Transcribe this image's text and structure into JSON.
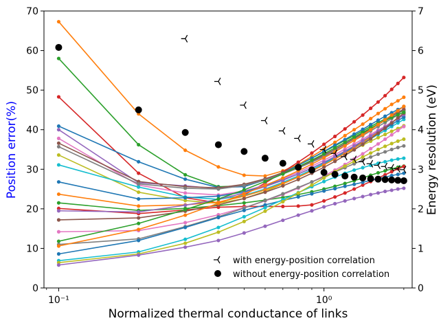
{
  "chart_data": {
    "type": "line",
    "title": "",
    "xlabel": "Normalized thermal conductance of links",
    "ylabel_left": "Position error(%)",
    "ylabel_right": "Energy resolution (eV)",
    "x_scale": "log",
    "xlim": [
      0.088,
      2.15
    ],
    "ylim_left": [
      0,
      70
    ],
    "ylim_right": [
      0,
      7
    ],
    "x_major_ticks": [
      {
        "value": 0.1,
        "label": "10⁻¹"
      },
      {
        "value": 1,
        "label": "10⁰"
      }
    ],
    "y_left_ticks": [
      "0",
      "10",
      "20",
      "30",
      "40",
      "50",
      "60",
      "70"
    ],
    "y_right_ticks": [
      "0",
      "1",
      "2",
      "3",
      "4",
      "5",
      "6",
      "7"
    ],
    "left_axis_color": "#0000ff",
    "right_axis_color": "#000000",
    "grid": false,
    "legend_position": "bottom-right",
    "legend": [
      {
        "marker": "tri-left",
        "label": "with energy-position correlation"
      },
      {
        "marker": "circle",
        "label": "without energy-position correlation"
      }
    ],
    "x": [
      0.1,
      0.2,
      0.3,
      0.4,
      0.5,
      0.6,
      0.7,
      0.8,
      0.9,
      1.0,
      1.1,
      1.2,
      1.3,
      1.4,
      1.5,
      1.6,
      1.7,
      1.8,
      1.9,
      2.0
    ],
    "series": [
      {
        "color": "#ff7f0e",
        "values": [
          67.3,
          44.0,
          34.8,
          30.6,
          28.5,
          28.3,
          29.6,
          31.2,
          33.2,
          35.1,
          36.8,
          38.5,
          40.0,
          41.4,
          42.8,
          44.1,
          45.3,
          46.4,
          47.3,
          48.2
        ]
      },
      {
        "color": "#2ca02c",
        "values": [
          58.0,
          36.2,
          28.6,
          25.6,
          25.8,
          27.4,
          29.2,
          31.0,
          32.8,
          34.4,
          35.9,
          37.3,
          38.5,
          39.7,
          40.8,
          41.8,
          42.7,
          43.5,
          44.2,
          44.9
        ]
      },
      {
        "color": "#d62728",
        "values": [
          48.3,
          29.0,
          22.8,
          21.5,
          23.5,
          26.5,
          29.3,
          31.8,
          34.1,
          36.3,
          38.3,
          40.2,
          42.0,
          43.7,
          45.4,
          47.0,
          48.6,
          50.2,
          51.7,
          53.2
        ]
      },
      {
        "color": "#1f77b4",
        "values": [
          40.9,
          31.9,
          27.5,
          25.4,
          25.6,
          27.3,
          29.1,
          31.0,
          32.8,
          34.5,
          36.1,
          37.5,
          38.9,
          40.1,
          41.3,
          42.4,
          43.4,
          44.3,
          45.1,
          45.8
        ]
      },
      {
        "color": "#9467bd",
        "values": [
          40.0,
          26.6,
          25.8,
          25.1,
          26.0,
          27.5,
          29.0,
          30.5,
          32.0,
          33.5,
          35.0,
          36.4,
          37.8,
          39.1,
          40.3,
          41.4,
          42.5,
          43.5,
          44.4,
          45.2
        ]
      },
      {
        "color": "#e377c2",
        "values": [
          37.8,
          26.0,
          24.0,
          23.5,
          24.5,
          26.0,
          27.6,
          29.2,
          30.8,
          32.3,
          33.7,
          35.1,
          36.4,
          37.6,
          38.8,
          39.9,
          40.9,
          41.9,
          42.8,
          43.7
        ]
      },
      {
        "color": "#8c564b",
        "values": [
          36.6,
          26.9,
          25.6,
          25.3,
          26.2,
          27.6,
          29.1,
          30.6,
          32.1,
          33.6,
          35.0,
          36.4,
          37.7,
          39.0,
          40.2,
          41.3,
          42.4,
          43.4,
          44.3,
          45.1
        ]
      },
      {
        "color": "#7f7f7f",
        "values": [
          35.7,
          26.3,
          25.2,
          25.0,
          25.9,
          27.3,
          28.8,
          30.3,
          31.8,
          33.2,
          34.6,
          36.0,
          37.3,
          38.5,
          39.7,
          40.8,
          41.8,
          42.8,
          43.7,
          44.5
        ]
      },
      {
        "color": "#bcbd22",
        "values": [
          33.6,
          24.2,
          22.1,
          21.4,
          22.6,
          24.4,
          26.3,
          28.1,
          29.8,
          31.4,
          32.8,
          34.0,
          35.1,
          36.1,
          37.1,
          38.0,
          38.8,
          39.6,
          40.3,
          41.0
        ]
      },
      {
        "color": "#17becf",
        "values": [
          31.1,
          25.5,
          23.0,
          22.4,
          23.4,
          25.0,
          26.7,
          28.3,
          29.9,
          31.4,
          32.8,
          34.1,
          35.4,
          36.6,
          37.7,
          38.8,
          39.8,
          40.8,
          41.7,
          42.6
        ]
      },
      {
        "color": "#1f77b4",
        "values": [
          26.8,
          22.5,
          22.8,
          23.2,
          24.3,
          25.8,
          27.3,
          28.8,
          30.3,
          31.7,
          33.1,
          34.4,
          35.7,
          36.9,
          38.1,
          39.2,
          40.3,
          41.3,
          42.3,
          43.2
        ]
      },
      {
        "color": "#ff7f0e",
        "values": [
          23.7,
          20.7,
          21.0,
          21.7,
          23.2,
          24.8,
          26.4,
          28.0,
          29.6,
          31.1,
          32.6,
          34.0,
          35.4,
          36.8,
          38.1,
          39.4,
          40.6,
          41.8,
          43.0,
          44.1
        ]
      },
      {
        "color": "#2ca02c",
        "values": [
          21.5,
          19.6,
          20.1,
          20.8,
          21.5,
          22.2,
          22.9,
          23.6,
          24.3,
          25.0,
          25.7,
          26.4,
          27.1,
          27.8,
          28.5,
          29.1,
          29.6,
          30.1,
          30.5,
          30.8
        ]
      },
      {
        "color": "#d62728",
        "values": [
          20.1,
          18.8,
          19.7,
          20.4,
          20.6,
          20.6,
          20.6,
          20.7,
          21.0,
          22.0,
          23.0,
          24.0,
          25.0,
          26.0,
          26.9,
          27.8,
          28.6,
          29.4,
          30.1,
          30.7
        ]
      },
      {
        "color": "#9467bd",
        "values": [
          19.5,
          19.2,
          20.9,
          22.4,
          24.0,
          25.6,
          27.2,
          28.8,
          30.3,
          31.8,
          33.2,
          34.6,
          35.9,
          37.2,
          38.4,
          39.6,
          40.7,
          41.8,
          42.8,
          43.8
        ]
      },
      {
        "color": "#8c564b",
        "values": [
          17.2,
          17.7,
          19.4,
          21.0,
          22.6,
          24.2,
          25.8,
          27.4,
          29.0,
          30.5,
          32.0,
          33.5,
          34.9,
          36.3,
          37.7,
          39.1,
          40.4,
          41.7,
          43.0,
          44.2
        ]
      },
      {
        "color": "#e377c2",
        "values": [
          14.2,
          14.5,
          16.5,
          18.5,
          20.3,
          22.0,
          23.6,
          25.2,
          26.8,
          28.3,
          29.8,
          31.2,
          32.6,
          33.9,
          35.2,
          36.4,
          37.6,
          38.7,
          39.8,
          40.8
        ]
      },
      {
        "color": "#2ca02c",
        "values": [
          11.8,
          16.3,
          19.8,
          22.5,
          24.8,
          26.9,
          28.8,
          30.6,
          32.3,
          33.9,
          35.4,
          36.8,
          38.1,
          39.3,
          40.4,
          41.4,
          42.3,
          43.1,
          43.8,
          44.4
        ]
      },
      {
        "color": "#7f7f7f",
        "values": [
          11.0,
          12.4,
          15.5,
          18.0,
          20.2,
          22.1,
          23.8,
          25.4,
          26.8,
          28.1,
          29.3,
          30.4,
          31.4,
          32.3,
          33.1,
          33.8,
          34.4,
          35.0,
          35.5,
          35.9
        ]
      },
      {
        "color": "#ff7f0e",
        "values": [
          10.6,
          14.8,
          18.4,
          21.4,
          23.8,
          25.9,
          27.8,
          29.6,
          31.3,
          32.9,
          34.4,
          35.9,
          37.3,
          38.7,
          40.0,
          41.3,
          42.5,
          43.7,
          44.8,
          45.9
        ]
      },
      {
        "color": "#1f77b4",
        "values": [
          8.6,
          12.0,
          15.3,
          17.8,
          19.6,
          21.0,
          22.1,
          23.0,
          23.8,
          24.5,
          25.1,
          25.7,
          26.2,
          26.7,
          27.2,
          27.6,
          28.0,
          28.4,
          28.7,
          29.0
        ]
      },
      {
        "color": "#17becf",
        "values": [
          6.9,
          9.1,
          12.3,
          15.3,
          18.0,
          20.3,
          22.3,
          24.1,
          25.6,
          26.9,
          28.0,
          29.0,
          29.8,
          30.4,
          31.0,
          31.5,
          31.9,
          32.3,
          32.6,
          32.8
        ]
      },
      {
        "color": "#bcbd22",
        "values": [
          6.4,
          8.6,
          11.3,
          14.1,
          16.8,
          19.4,
          21.8,
          24.0,
          26.0,
          27.8,
          29.4,
          30.8,
          32.0,
          33.1,
          34.1,
          35.0,
          35.8,
          36.5,
          37.1,
          37.6
        ]
      },
      {
        "color": "#9467bd",
        "values": [
          5.8,
          8.3,
          10.3,
          12.0,
          13.9,
          15.6,
          17.1,
          18.4,
          19.5,
          20.5,
          21.3,
          22.0,
          22.6,
          23.1,
          23.6,
          24.0,
          24.4,
          24.7,
          25.0,
          25.2
        ]
      }
    ],
    "energy_with_correlation": {
      "axis": "right",
      "marker": "tri-left",
      "x": [
        0.3,
        0.4,
        0.5,
        0.6,
        0.7,
        0.8,
        0.9,
        1.0,
        1.1,
        1.2,
        1.3,
        1.4,
        1.5,
        1.6,
        1.7,
        1.8,
        1.9,
        2.0
      ],
      "values": [
        6.3,
        5.22,
        4.62,
        4.23,
        3.97,
        3.78,
        3.64,
        3.5,
        3.4,
        3.32,
        3.25,
        3.19,
        3.14,
        3.1,
        3.07,
        3.04,
        3.01,
        2.99
      ]
    },
    "energy_without_correlation": {
      "axis": "right",
      "marker": "circle",
      "x": [
        0.1,
        0.2,
        0.3,
        0.4,
        0.5,
        0.6,
        0.7,
        0.8,
        0.9,
        1.0,
        1.1,
        1.2,
        1.3,
        1.4,
        1.5,
        1.6,
        1.7,
        1.8,
        1.9,
        2.0
      ],
      "values": [
        6.08,
        4.5,
        3.93,
        3.62,
        3.45,
        3.28,
        3.15,
        3.05,
        2.98,
        2.92,
        2.87,
        2.83,
        2.8,
        2.78,
        2.76,
        2.75,
        2.74,
        2.73,
        2.72,
        2.71
      ]
    }
  }
}
